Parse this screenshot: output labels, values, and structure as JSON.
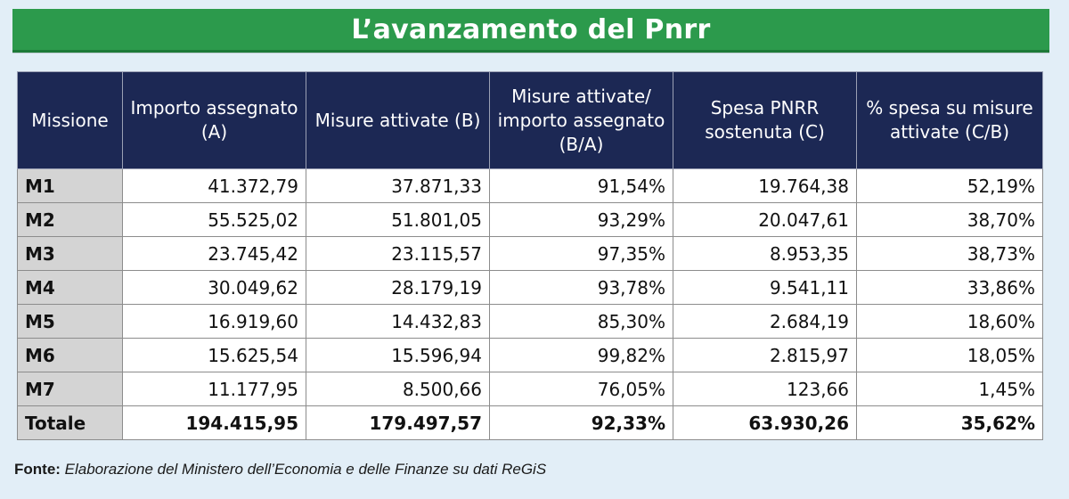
{
  "title": "L’avanzamento del Pnrr",
  "chart_data": {
    "type": "table",
    "title": "L’avanzamento del Pnrr",
    "columns": [
      "Missione",
      "Importo assegnato (A)",
      "Misure attivate (B)",
      "Misure attivate/ importo assegnato (B/A)",
      "Spesa PNRR sostenuta (C)",
      "% spesa su misure attivate (C/B)"
    ],
    "rows": [
      [
        "M1",
        "41.372,79",
        "37.871,33",
        "91,54%",
        "19.764,38",
        "52,19%"
      ],
      [
        "M2",
        "55.525,02",
        "51.801,05",
        "93,29%",
        "20.047,61",
        "38,70%"
      ],
      [
        "M3",
        "23.745,42",
        "23.115,57",
        "97,35%",
        "8.953,35",
        "38,73%"
      ],
      [
        "M4",
        "30.049,62",
        "28.179,19",
        "93,78%",
        "9.541,11",
        "33,86%"
      ],
      [
        "M5",
        "16.919,60",
        "14.432,83",
        "85,30%",
        "2.684,19",
        "18,60%"
      ],
      [
        "M6",
        "15.625,54",
        "15.596,94",
        "99,82%",
        "2.815,97",
        "18,05%"
      ],
      [
        "M7",
        "11.177,95",
        "8.500,66",
        "76,05%",
        "123,66",
        "1,45%"
      ]
    ],
    "total": [
      "Totale",
      "194.415,95",
      "179.497,57",
      "92,33%",
      "63.930,26",
      "35,62%"
    ]
  },
  "source": {
    "label": "Fonte:",
    "text": " Elaborazione del Ministero dell’Economia e delle Finanze su dati ReGiS"
  },
  "colors": {
    "title_bg": "#2c9a4c",
    "header_bg": "#1c2854",
    "mission_bg": "#d4d4d4",
    "frame_bg": "#e2eef7"
  }
}
